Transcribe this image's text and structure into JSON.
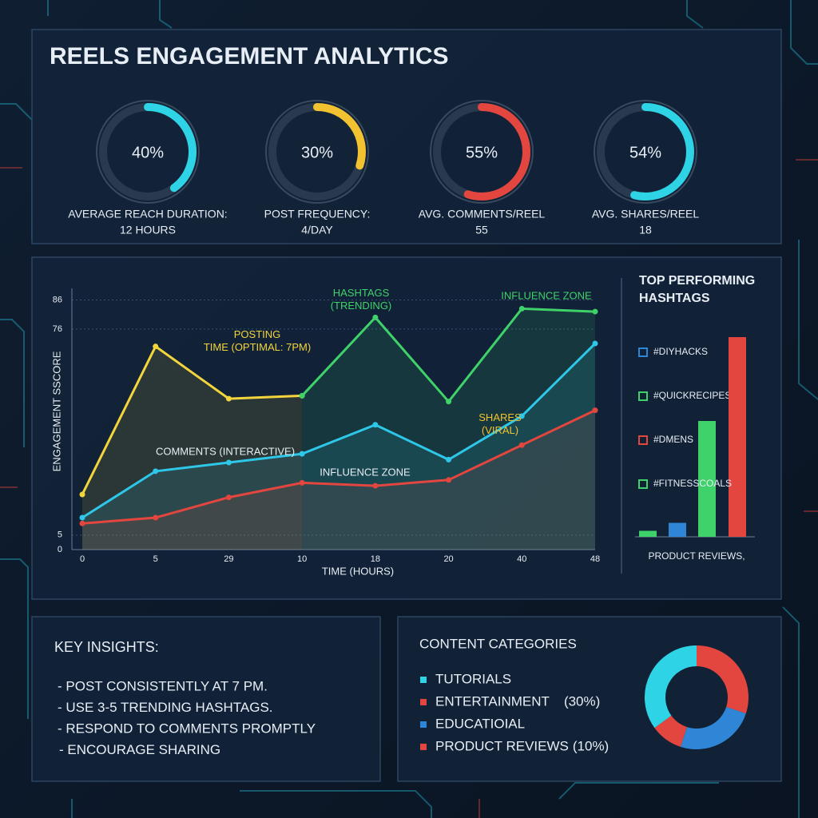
{
  "header": {
    "title": "REELS ENGAGEMENT ANALYTICS"
  },
  "chart_data": [
    {
      "type": "gauge",
      "categories": [
        "AVERAGE REACH DURATION:",
        "POST FREQUENCY:",
        "AVG. COMMENTS/REEL",
        "AVG. SHARES/REEL"
      ],
      "details": [
        "12 HOURS",
        "4/DAY",
        "55",
        "18"
      ],
      "values": [
        40,
        30,
        55,
        54
      ],
      "value_labels": [
        "40%",
        "30%",
        "55%",
        "54%"
      ],
      "colors": [
        "#2ed3e6",
        "#f2c230",
        "#e2463f",
        "#2ed3e6"
      ]
    },
    {
      "type": "line",
      "y_label": "ENGAGEMENT SSCORE",
      "x_label": "TIME (HOURS)",
      "categories": [
        "0",
        "5",
        "29",
        "10",
        "18",
        "20",
        "40",
        "48"
      ],
      "series": [
        {
          "name": "POSTING TIME (OPTIMAL: 7PM)",
          "color": "#f2d53c",
          "values": [
            19,
            70,
            52,
            53,
            null,
            null,
            null,
            null
          ]
        },
        {
          "name": "HASHTAGS (TRENDING)",
          "color": "#3fd26a",
          "values": [
            null,
            null,
            null,
            53,
            80,
            51,
            83,
            82
          ]
        },
        {
          "name": "COMMENTS (INTERACTIVE)",
          "color": "#2ec7e8",
          "values": [
            11,
            27,
            30,
            33,
            43,
            31,
            46,
            71
          ]
        },
        {
          "name": "INFLUENCE ZONE",
          "color": "#e2463f",
          "values": [
            9,
            11,
            18,
            23,
            22,
            24,
            36,
            48
          ]
        }
      ],
      "annotations": [
        "INFLUENCE ZONE",
        "SHARES (VIRAL)"
      ],
      "ylim": [
        0,
        90
      ],
      "yticks": [
        0,
        5,
        76,
        86
      ],
      "grid": true
    },
    {
      "type": "bar",
      "title": "TOP PERFORMING HASHTAGS",
      "categories": [
        "#DIYHACKS",
        "#QUICKRECIPES",
        "#DMENS",
        "#FITNESSCOALS"
      ],
      "values": [
        3,
        7,
        58,
        100
      ],
      "colors": [
        "#3fd26a",
        "#2f86d6",
        "#3fd26a",
        "#e2463f"
      ],
      "footer": "PRODUCT REVIEWS,"
    },
    {
      "type": "donut",
      "title": "CONTENT CATEGORIES",
      "categories": [
        "TUTORIALS",
        "ENTERTAINMENT",
        "EDUCATIOIAL",
        "PRODUCT REVIEWS"
      ],
      "values": [
        35,
        30,
        25,
        10
      ],
      "value_labels": [
        null,
        "(30%)",
        null,
        "(10%)"
      ],
      "colors": [
        "#2ed3e6",
        "#e2463f",
        "#2f86d6",
        "#e2463f"
      ]
    }
  ],
  "insights": {
    "title": "KEY INSIGHTS:",
    "items": [
      "- POST CONSISTENTLY AT 7 PM.",
      "- USE 3-5 TRENDING HASHTAGS.",
      "- RESPOND TO COMMENTS PROMPTLY",
      "- ENCOURAGE SHARING"
    ]
  }
}
